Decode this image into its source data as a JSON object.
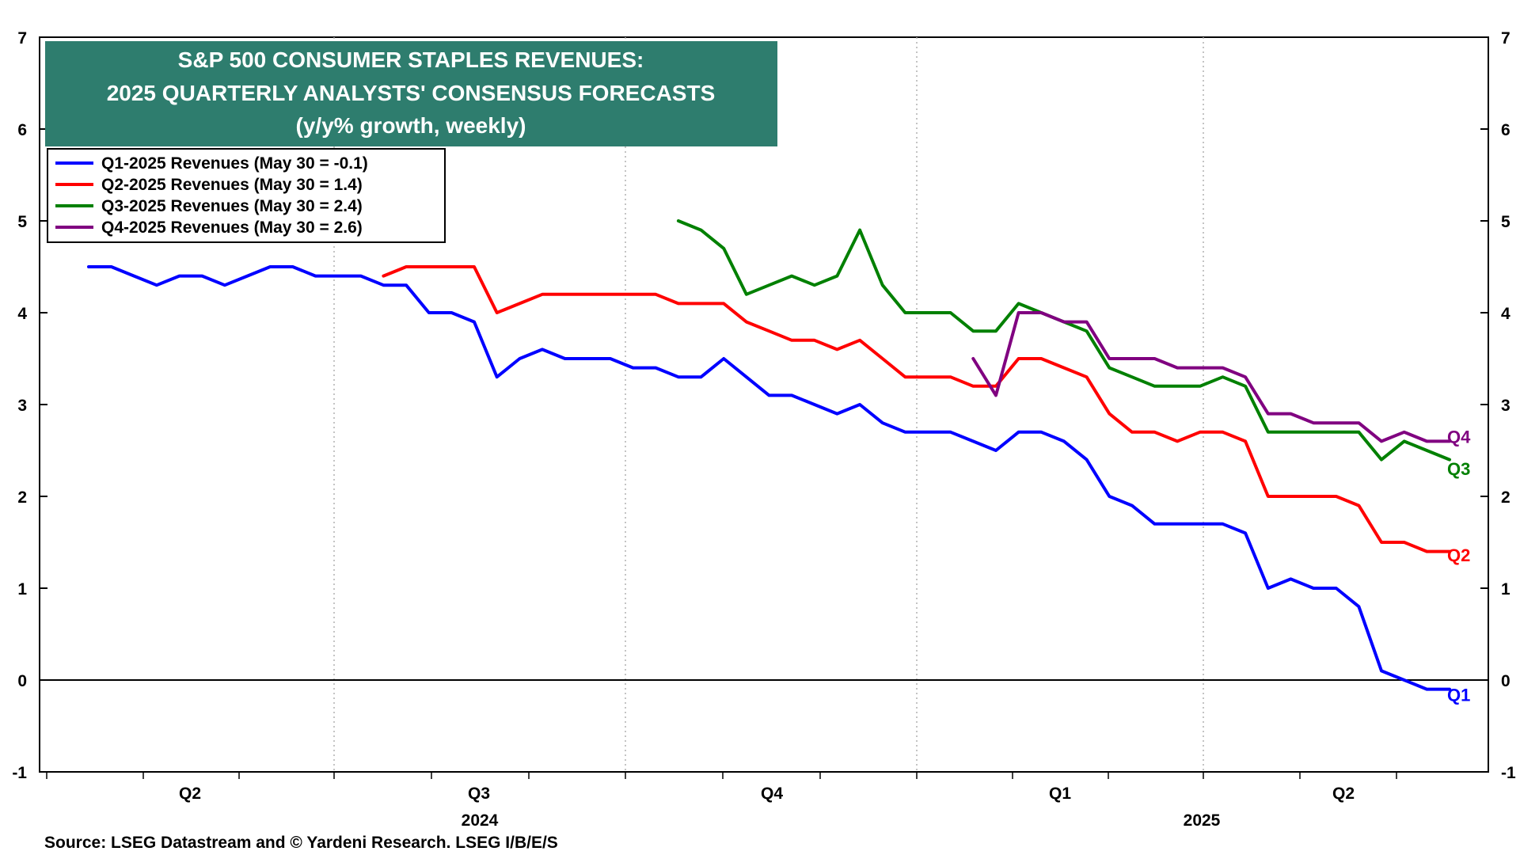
{
  "chart_data": {
    "type": "line",
    "title_lines": [
      "S&P 500 CONSUMER STAPLES REVENUES:",
      "2025 QUARTERLY ANALYSTS' CONSENSUS FORECASTS",
      "(y/y% growth, weekly)"
    ],
    "source": "Source: LSEG Datastream and © Yardeni Research. LSEG I/B/E/S",
    "y_ticks": [
      "7",
      "6",
      "5",
      "4",
      "3",
      "2",
      "1",
      "0",
      "-1"
    ],
    "ylim": [
      -1,
      7
    ],
    "grid": "vertical-dotted",
    "legend_position": "top-left",
    "x_quarter_labels": [
      "Q2",
      "Q3",
      "Q4",
      "Q1",
      "Q2"
    ],
    "x_year_labels": [
      "2024",
      "2025"
    ],
    "series": [
      {
        "name": "Q1-2025 Revenues (May 30 = -0.1)",
        "color": "#0000ff",
        "end_label": "Q1",
        "start_week": 0,
        "values": [
          4.5,
          4.5,
          4.4,
          4.3,
          4.4,
          4.4,
          4.3,
          4.4,
          4.5,
          4.5,
          4.4,
          4.4,
          4.4,
          4.3,
          4.3,
          4.0,
          4.0,
          3.9,
          3.3,
          3.5,
          3.6,
          3.5,
          3.5,
          3.5,
          3.4,
          3.4,
          3.3,
          3.3,
          3.5,
          3.3,
          3.1,
          3.1,
          3.0,
          2.9,
          3.0,
          2.8,
          2.7,
          2.7,
          2.7,
          2.6,
          2.5,
          2.7,
          2.7,
          2.6,
          2.4,
          2.0,
          1.9,
          1.7,
          1.7,
          1.7,
          1.7,
          1.6,
          1.0,
          1.1,
          1.0,
          1.0,
          0.8,
          0.1,
          0.0,
          -0.1,
          -0.1
        ]
      },
      {
        "name": "Q2-2025 Revenues (May 30 = 1.4)",
        "color": "#ff0000",
        "end_label": "Q2",
        "start_week": 13,
        "values": [
          4.4,
          4.5,
          4.5,
          4.5,
          4.5,
          4.0,
          4.1,
          4.2,
          4.2,
          4.2,
          4.2,
          4.2,
          4.2,
          4.1,
          4.1,
          4.1,
          3.9,
          3.8,
          3.7,
          3.7,
          3.6,
          3.7,
          3.5,
          3.3,
          3.3,
          3.3,
          3.2,
          3.2,
          3.5,
          3.5,
          3.4,
          3.3,
          2.9,
          2.7,
          2.7,
          2.6,
          2.7,
          2.7,
          2.6,
          2.0,
          2.0,
          2.0,
          2.0,
          1.9,
          1.5,
          1.5,
          1.4,
          1.4
        ]
      },
      {
        "name": "Q3-2025 Revenues (May 30 = 2.4)",
        "color": "#008000",
        "end_label": "Q3",
        "start_week": 26,
        "values": [
          5.0,
          4.9,
          4.7,
          4.2,
          4.3,
          4.4,
          4.3,
          4.4,
          4.9,
          4.3,
          4.0,
          4.0,
          4.0,
          3.8,
          3.8,
          4.1,
          4.0,
          3.9,
          3.8,
          3.4,
          3.3,
          3.2,
          3.2,
          3.2,
          3.3,
          3.2,
          2.7,
          2.7,
          2.7,
          2.7,
          2.7,
          2.4,
          2.6,
          2.5,
          2.4
        ]
      },
      {
        "name": "Q4-2025 Revenues (May 30 = 2.6)",
        "color": "#800080",
        "end_label": "Q4",
        "start_week": 39,
        "values": [
          3.5,
          3.1,
          4.0,
          4.0,
          3.9,
          3.9,
          3.5,
          3.5,
          3.5,
          3.4,
          3.4,
          3.4,
          3.3,
          2.9,
          2.9,
          2.8,
          2.8,
          2.8,
          2.6,
          2.7,
          2.6,
          2.6
        ]
      }
    ]
  }
}
